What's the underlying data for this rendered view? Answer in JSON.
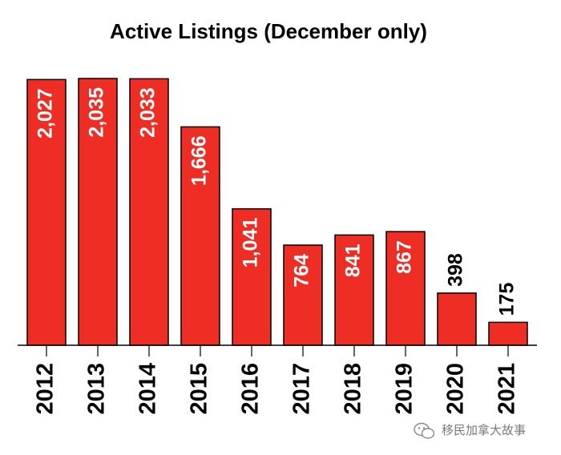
{
  "chart_data": {
    "type": "bar",
    "title": "Active Listings (December only)",
    "xlabel": "",
    "ylabel": "",
    "categories": [
      "2012",
      "2013",
      "2014",
      "2015",
      "2016",
      "2017",
      "2018",
      "2019",
      "2020",
      "2021"
    ],
    "values": [
      2027,
      2035,
      2033,
      1666,
      1041,
      764,
      841,
      867,
      398,
      175
    ],
    "value_labels": [
      "2,027",
      "2,035",
      "2,033",
      "1,666",
      "1,041",
      "764",
      "841",
      "867",
      "398",
      "175"
    ],
    "ylim": [
      0,
      2035
    ],
    "grid": false,
    "legend": "none",
    "colors": {
      "bar": "#ee2e24",
      "outline": "#000000",
      "label_inside": "#ffffff",
      "label_outside": "#000000"
    }
  },
  "watermark": {
    "text": "移民加拿大故事",
    "icon": "wechat-icon"
  }
}
